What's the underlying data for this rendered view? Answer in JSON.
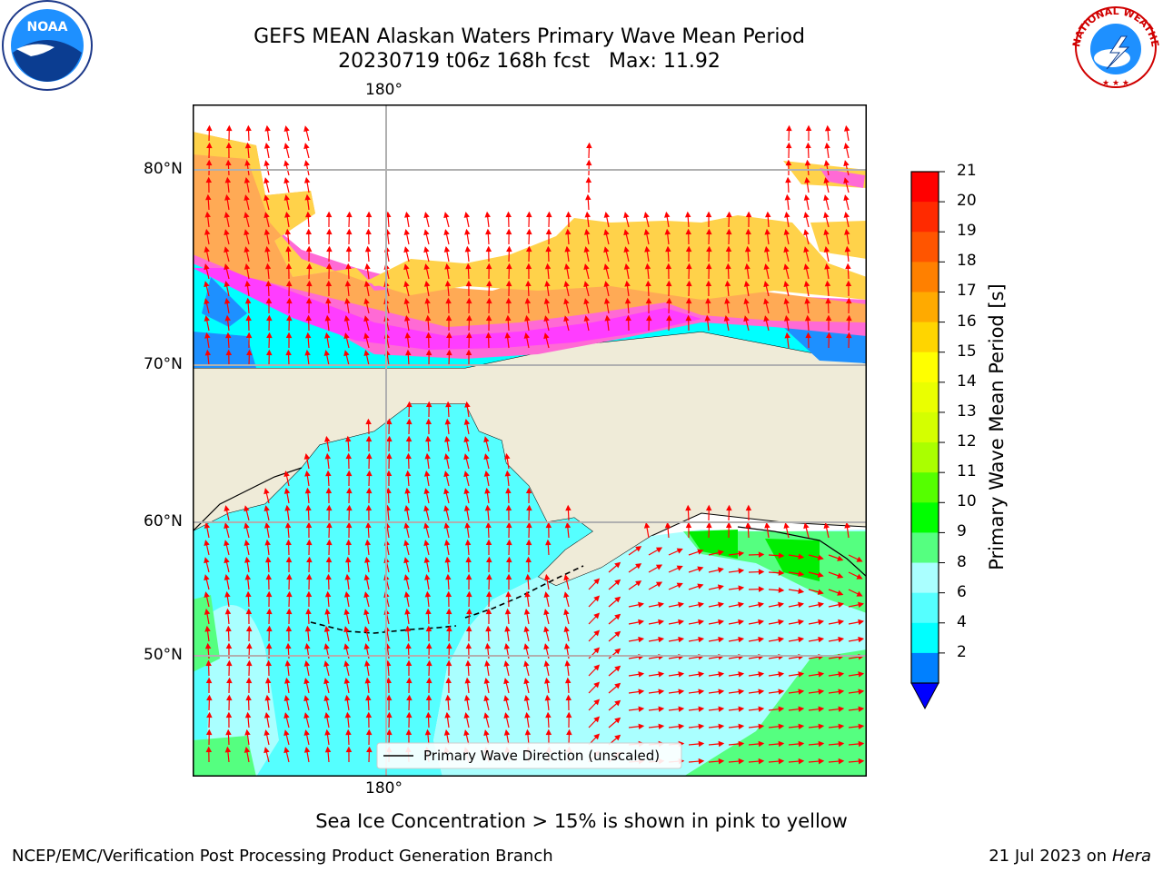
{
  "title": {
    "line1": "GEFS MEAN Alaskan Waters Primary Wave Mean Period",
    "line2": "20230719 t06z 168h fcst   Max: 11.92"
  },
  "logos": {
    "noaa": "NOAA",
    "nws_arc": "NATIONAL WEATHER SERVICE"
  },
  "map": {
    "lon_labels": [
      "180°",
      "180°"
    ],
    "lat_labels": [
      "80°N",
      "70°N",
      "60°N",
      "50°N"
    ],
    "legend": "Primary Wave Direction (unscaled)"
  },
  "colorbar": {
    "label": "Primary Wave Mean Period [s]",
    "ticks": [
      "21",
      "20",
      "19",
      "18",
      "17",
      "16",
      "15",
      "14",
      "13",
      "12",
      "11",
      "10",
      "9",
      "8",
      "6",
      "4",
      "2"
    ],
    "colors": [
      "#ff0000",
      "#ff2a00",
      "#ff5500",
      "#ff8000",
      "#ffaa00",
      "#ffd500",
      "#ffff00",
      "#eaff00",
      "#d4ff00",
      "#aaff00",
      "#55ff00",
      "#00ff00",
      "#55ff80",
      "#aaffff",
      "#55ffff",
      "#00ffff",
      "#0080ff"
    ],
    "under_color": "#0000ff"
  },
  "notes": {
    "ice": "Sea Ice Concentration > 15% is shown in pink to yellow",
    "credit": "NCEP/EMC/Verification Post Processing Product Generation Branch",
    "date": "21 Jul 2023 on ",
    "machine": "Hera"
  }
}
